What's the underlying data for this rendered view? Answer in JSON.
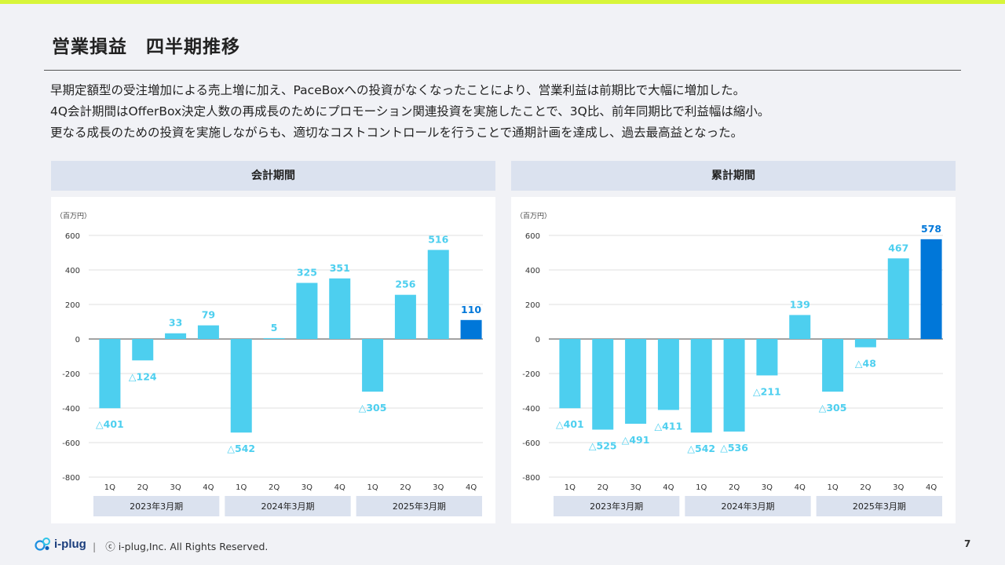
{
  "page": {
    "title": "営業損益　四半期推移",
    "description": [
      "早期定額型の受注増加による売上増に加え、PaceBoxへの投資がなくなったことにより、営業利益は前期比で大幅に増加した。",
      "4Q会計期間はOfferBox決定人数の再成長のためにプロモーション関連投資を実施したことで、3Q比、前年同期比で利益幅は縮小。",
      "更なる成長のための投資を実施しながらも、適切なコストコントロールを行うことで通期計画を達成し、過去最高益となった。"
    ],
    "footer": {
      "logo_text": "i-plug",
      "separator": "|",
      "copyright": "ⓒ i-plug,Inc. All Rights Reserved.",
      "page_number": "7"
    }
  },
  "colors": {
    "bar": "#4dcfef",
    "bar_highlight": "#0077d9",
    "label": "#4dcfef",
    "label_highlight": "#0077d9",
    "year_box": "#dbe2ef"
  },
  "chart_data": [
    {
      "type": "bar",
      "title": "会計期間",
      "unit_label": "（百万円）",
      "categories": [
        "1Q",
        "2Q",
        "3Q",
        "4Q",
        "1Q",
        "2Q",
        "3Q",
        "4Q",
        "1Q",
        "2Q",
        "3Q",
        "4Q"
      ],
      "groups": [
        "2023年3月期",
        "2024年3月期",
        "2025年3月期"
      ],
      "values": [
        -401,
        -124,
        33,
        79,
        -542,
        5,
        325,
        351,
        -305,
        256,
        516,
        110
      ],
      "data_labels": [
        "△401",
        "△124",
        "33",
        "79",
        "△542",
        "5",
        "325",
        "351",
        "△305",
        "256",
        "516",
        "110"
      ],
      "highlight_index": 11,
      "ylim": [
        -800,
        600
      ],
      "yticks": [
        "600",
        "400",
        "200",
        "0",
        "-200",
        "-400",
        "-600",
        "-800"
      ],
      "grid": true
    },
    {
      "type": "bar",
      "title": "累計期間",
      "unit_label": "（百万円）",
      "categories": [
        "1Q",
        "2Q",
        "3Q",
        "4Q",
        "1Q",
        "2Q",
        "3Q",
        "4Q",
        "1Q",
        "2Q",
        "3Q",
        "4Q"
      ],
      "groups": [
        "2023年3月期",
        "2024年3月期",
        "2025年3月期"
      ],
      "values": [
        -401,
        -525,
        -491,
        -411,
        -542,
        -536,
        -211,
        139,
        -305,
        -48,
        467,
        578
      ],
      "data_labels": [
        "△401",
        "△525",
        "△491",
        "△411",
        "△542",
        "△536",
        "△211",
        "139",
        "△305",
        "△48",
        "467",
        "578"
      ],
      "highlight_index": 11,
      "ylim": [
        -800,
        600
      ],
      "yticks": [
        "600",
        "400",
        "200",
        "0",
        "-200",
        "-400",
        "-600",
        "-800"
      ],
      "grid": true
    }
  ]
}
